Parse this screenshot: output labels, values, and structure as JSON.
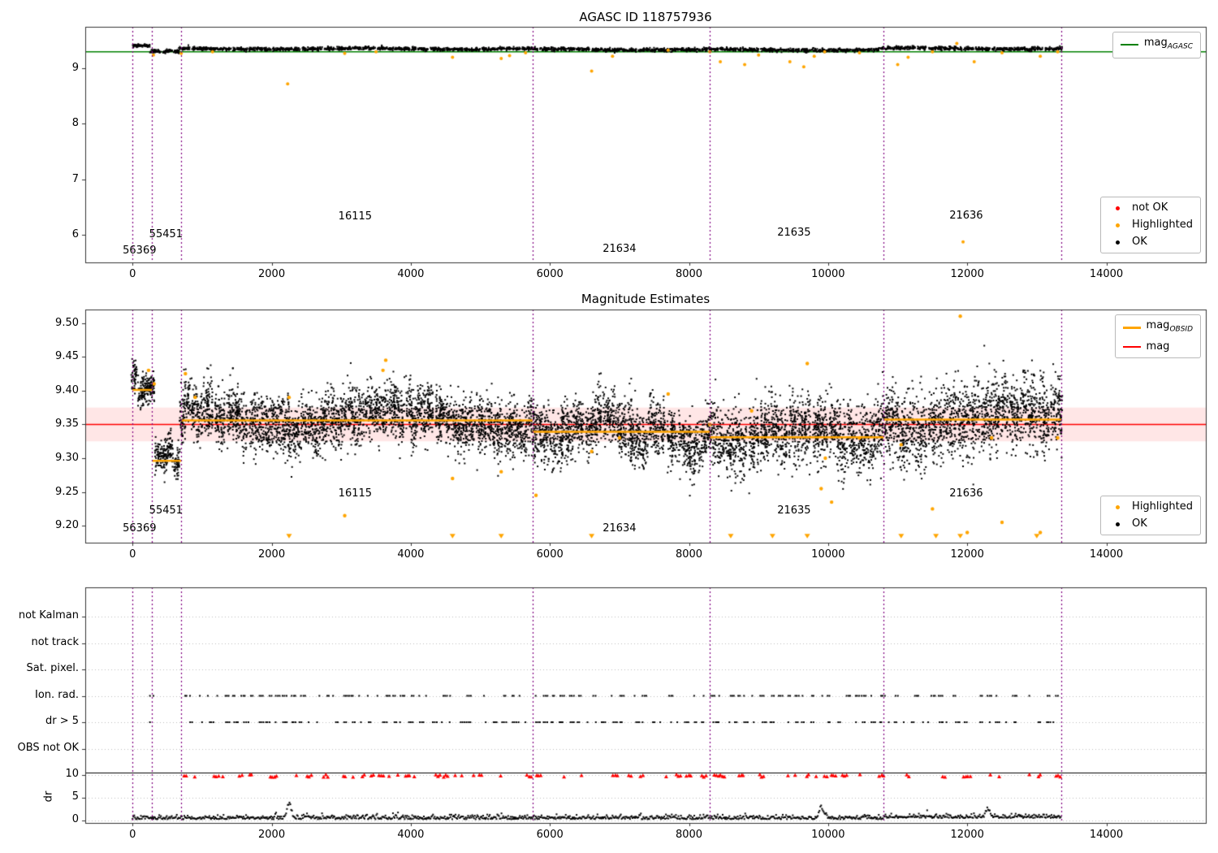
{
  "colors": {
    "mag_agasc": "#008000",
    "mag": "#ff0000",
    "obsid": "#ffa500",
    "highlight": "#ffa500",
    "ok": "#000000",
    "not_ok": "#ff0000",
    "vline": "#800080",
    "band": "rgba(255,80,80,0.14)"
  },
  "legends": {
    "chart1_line": [
      {
        "label": "mag",
        "sub": "AGASC",
        "color": "#008000",
        "type": "line",
        "lw": 2
      }
    ],
    "chart1_points": [
      {
        "label": "not OK",
        "color": "#ff0000",
        "type": "dot"
      },
      {
        "label": "Highlighted",
        "color": "#ffa500",
        "type": "dot"
      },
      {
        "label": "OK",
        "color": "#000000",
        "type": "dot"
      }
    ],
    "chart2_lines": [
      {
        "label": "mag",
        "sub": "OBSID",
        "color": "#ffa500",
        "type": "line",
        "lw": 3
      },
      {
        "label": "mag",
        "sub": "",
        "color": "#ff0000",
        "type": "line",
        "lw": 2
      }
    ],
    "chart2_points": [
      {
        "label": "Highlighted",
        "color": "#ffa500",
        "type": "dot"
      },
      {
        "label": "OK",
        "color": "#000000",
        "type": "dot"
      }
    ]
  },
  "chart_data": [
    {
      "type": "scatter",
      "title": "AGASC ID 118757936",
      "xlim": [
        -680,
        15430
      ],
      "ylim": [
        5.5,
        9.75
      ],
      "xticks": [
        0,
        2000,
        4000,
        6000,
        8000,
        10000,
        12000,
        14000
      ],
      "yticks": [
        6,
        7,
        8,
        9
      ],
      "mag_agasc": 9.3,
      "vlines": [
        0,
        280,
        700,
        5750,
        8300,
        10800,
        13350
      ],
      "obsid_labels": [
        {
          "text": "56369",
          "x": 100,
          "y": 5.7
        },
        {
          "text": "55451",
          "x": 480,
          "y": 6.0
        },
        {
          "text": "16115",
          "x": 3200,
          "y": 6.32
        },
        {
          "text": "21634",
          "x": 7000,
          "y": 5.73
        },
        {
          "text": "21635",
          "x": 9510,
          "y": 6.03
        },
        {
          "text": "21636",
          "x": 11985,
          "y": 6.33
        }
      ],
      "ok_gen": {
        "x_range": [
          0,
          13350
        ],
        "clusters": 160,
        "pts_per_cluster": 20,
        "sd": 0.015,
        "segment_means": [
          [
            0,
            280,
            9.405
          ],
          [
            280,
            700,
            9.3
          ],
          [
            700,
            5750,
            9.352
          ],
          [
            5750,
            8300,
            9.34
          ],
          [
            8300,
            10800,
            9.335
          ],
          [
            10800,
            13350,
            9.358
          ]
        ]
      },
      "highlighted": [
        [
          300,
          9.24
        ],
        [
          700,
          9.27
        ],
        [
          1150,
          9.3
        ],
        [
          2230,
          8.72
        ],
        [
          3050,
          9.27
        ],
        [
          3500,
          9.3
        ],
        [
          4600,
          9.2
        ],
        [
          5300,
          9.18
        ],
        [
          5420,
          9.23
        ],
        [
          5650,
          9.28
        ],
        [
          6600,
          8.95
        ],
        [
          6900,
          9.22
        ],
        [
          7700,
          9.33
        ],
        [
          8300,
          9.3
        ],
        [
          8450,
          9.12
        ],
        [
          8800,
          9.07
        ],
        [
          9000,
          9.24
        ],
        [
          9450,
          9.12
        ],
        [
          9650,
          9.03
        ],
        [
          9800,
          9.22
        ],
        [
          9950,
          9.3
        ],
        [
          10450,
          9.28
        ],
        [
          11000,
          9.07
        ],
        [
          11150,
          9.2
        ],
        [
          11500,
          9.3
        ],
        [
          11850,
          9.45
        ],
        [
          11940,
          5.87
        ],
        [
          12100,
          9.12
        ],
        [
          12500,
          9.28
        ],
        [
          13050,
          9.22
        ],
        [
          13300,
          9.3
        ]
      ]
    },
    {
      "type": "scatter",
      "title": "Magnitude Estimates",
      "xlim": [
        -680,
        15430
      ],
      "ylim": [
        9.175,
        9.52
      ],
      "xticks": [
        0,
        2000,
        4000,
        6000,
        8000,
        10000,
        12000,
        14000
      ],
      "yticks": [
        9.2,
        9.25,
        9.3,
        9.35,
        9.4,
        9.45,
        9.5
      ],
      "mag": 9.35,
      "band": [
        9.325,
        9.375
      ],
      "vlines": [
        0,
        280,
        700,
        5750,
        8300,
        10800,
        13350
      ],
      "obsid_segments": [
        [
          0,
          280,
          9.401
        ],
        [
          280,
          700,
          9.296
        ],
        [
          700,
          5750,
          9.356
        ],
        [
          5750,
          8300,
          9.339
        ],
        [
          8300,
          10800,
          9.331
        ],
        [
          10800,
          13350,
          9.357
        ]
      ],
      "ok_gen": {
        "x_range": [
          0,
          13350
        ],
        "clusters": 160,
        "pts_per_cluster": 55,
        "sds": [
          0.012,
          0.012,
          0.02,
          0.02,
          0.024,
          0.027
        ]
      },
      "obsid_labels": [
        {
          "text": "56369",
          "x": 100,
          "y": 9.195
        },
        {
          "text": "55451",
          "x": 480,
          "y": 9.222
        },
        {
          "text": "16115",
          "x": 3200,
          "y": 9.247
        },
        {
          "text": "21634",
          "x": 7000,
          "y": 9.196
        },
        {
          "text": "21635",
          "x": 9510,
          "y": 9.222
        },
        {
          "text": "21636",
          "x": 11985,
          "y": 9.247
        }
      ],
      "highlighted": [
        [
          230,
          9.43
        ],
        [
          310,
          9.41
        ],
        [
          760,
          9.425
        ],
        [
          900,
          9.39
        ],
        [
          2250,
          9.39
        ],
        [
          3050,
          9.215
        ],
        [
          3600,
          9.43
        ],
        [
          3640,
          9.445
        ],
        [
          4600,
          9.27
        ],
        [
          5300,
          9.28
        ],
        [
          5800,
          9.245
        ],
        [
          6600,
          9.31
        ],
        [
          7000,
          9.33
        ],
        [
          7700,
          9.395
        ],
        [
          8300,
          9.35
        ],
        [
          8900,
          9.37
        ],
        [
          9700,
          9.44
        ],
        [
          9900,
          9.255
        ],
        [
          9960,
          9.3
        ],
        [
          10050,
          9.235
        ],
        [
          10450,
          9.33
        ],
        [
          11050,
          9.32
        ],
        [
          11500,
          9.225
        ],
        [
          11900,
          9.51
        ],
        [
          12000,
          9.19
        ],
        [
          12350,
          9.33
        ],
        [
          12500,
          9.205
        ],
        [
          13050,
          9.19
        ],
        [
          13300,
          9.33
        ]
      ],
      "bottom_markers_x": [
        2250,
        4600,
        5300,
        6600,
        8600,
        9200,
        9700,
        11050,
        11550,
        11900,
        13000
      ],
      "bottom_marker_y": 9.185
    },
    {
      "type": "scatter",
      "title": "",
      "xlim": [
        -680,
        15430
      ],
      "ylim": [
        0,
        1
      ],
      "xticks": [
        0,
        2000,
        4000,
        6000,
        8000,
        10000,
        12000,
        14000
      ],
      "flag_rows": [
        "not Kalman",
        "not track",
        "Sat. pixel.",
        "Ion. rad.",
        "dr > 5",
        "OBS not OK"
      ],
      "dr_ticks": [
        10,
        5,
        0
      ],
      "ylabel": "dr",
      "vlines": [
        0,
        280,
        700,
        5750,
        8300,
        10800,
        13350
      ],
      "ion_rad_gen": {
        "x_range": [
          700,
          13350
        ],
        "centers": 105,
        "extra_x": [
          250,
          300
        ]
      },
      "dr5_gen": {
        "x_range": [
          700,
          13350
        ],
        "centers": 105,
        "extra_x": [
          250
        ]
      },
      "dr10_red_gen": {
        "x_range": [
          700,
          13350
        ],
        "centers": 95,
        "dr_value": 10
      },
      "dr_trace_gen": {
        "x_range": [
          0,
          13350
        ],
        "step": 12,
        "base": 0.45,
        "spikes": [
          [
            2250,
            3.2
          ],
          [
            9900,
            2.4
          ],
          [
            12300,
            1.8
          ]
        ]
      },
      "separator_dr": 10.5
    }
  ]
}
